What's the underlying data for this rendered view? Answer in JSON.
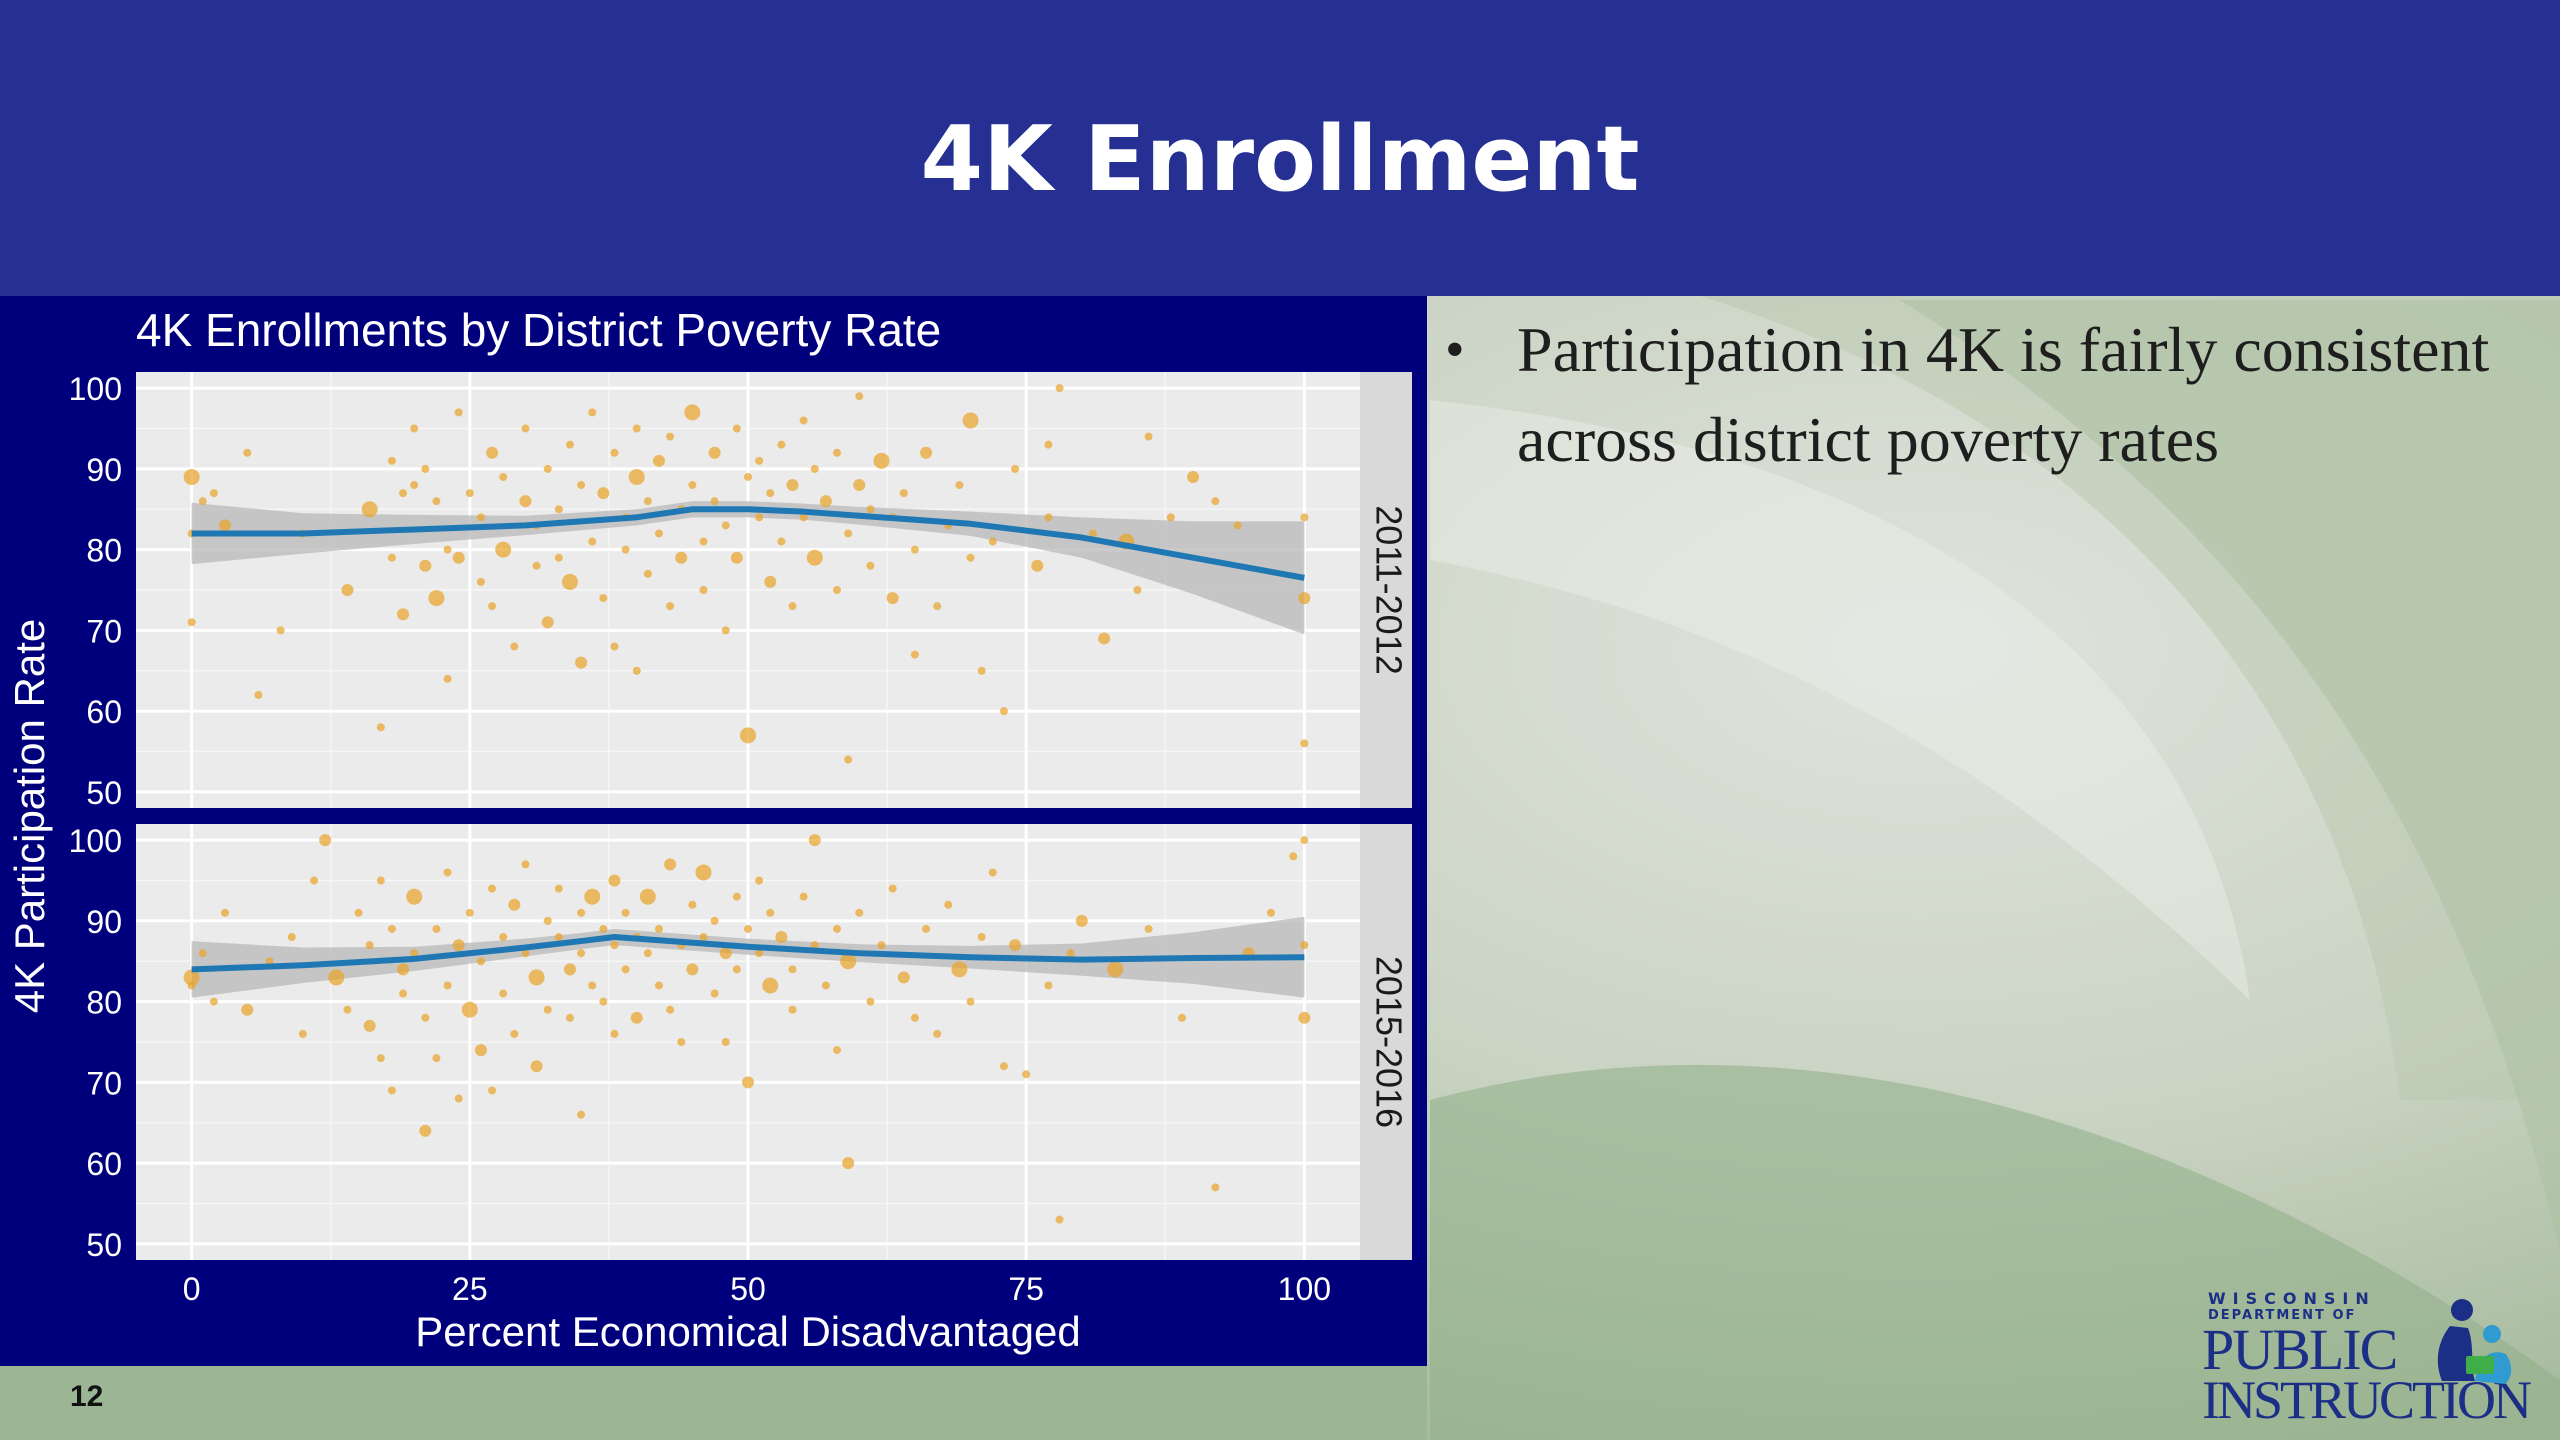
{
  "slide": {
    "title": "4K Enrollment",
    "page_number": "12",
    "bullets": [
      {
        "text": "Participation in 4K is fairly consistent across district poverty rates"
      }
    ]
  },
  "logo": {
    "line1": "WISCONSIN",
    "line2": "DEPARTMENT OF",
    "line3": "PUBLIC",
    "line4": "INSTRUCTION",
    "icon": "children-reading-icon"
  },
  "colors": {
    "header": "#253092",
    "chart_background": "#00007d",
    "panel": "#ebebeb",
    "points": "#e8a325",
    "smooth_line": "#1f78b4",
    "confidence_band": "#b8b8b8"
  },
  "chart_data": {
    "type": "scatter",
    "title": "4K Enrollments by District Poverty Rate",
    "xlabel": "Percent Economical Disadvantaged",
    "ylabel": "4K Participation Rate",
    "xlim": [
      -5,
      105
    ],
    "ylim": [
      48,
      102
    ],
    "x_ticks": [
      "0",
      "25",
      "50",
      "75",
      "100"
    ],
    "y_ticks": [
      "50",
      "60",
      "70",
      "80",
      "90",
      "100"
    ],
    "grid": true,
    "facets": [
      {
        "label": "2011-2012",
        "smooth": {
          "x": [
            0,
            10,
            20,
            30,
            40,
            45,
            50,
            55,
            60,
            70,
            80,
            90,
            100
          ],
          "y": [
            82,
            82,
            82.5,
            83,
            84,
            85,
            85,
            84.7,
            84.2,
            83.2,
            81.5,
            79,
            76.5
          ],
          "band": [
            3.8,
            2.5,
            1.8,
            1.2,
            1.0,
            1.0,
            1.0,
            1.0,
            1.1,
            1.5,
            2.5,
            4.5,
            7
          ]
        },
        "points": [
          [
            0,
            89
          ],
          [
            0,
            71
          ],
          [
            0,
            82
          ],
          [
            1,
            86
          ],
          [
            2,
            87
          ],
          [
            3,
            83
          ],
          [
            5,
            92
          ],
          [
            6,
            62
          ],
          [
            8,
            70
          ],
          [
            10,
            82
          ],
          [
            14,
            75
          ],
          [
            16,
            85
          ],
          [
            17,
            58
          ],
          [
            18,
            79
          ],
          [
            18,
            91
          ],
          [
            19,
            72
          ],
          [
            19,
            87
          ],
          [
            20,
            88
          ],
          [
            20,
            95
          ],
          [
            21,
            90
          ],
          [
            21,
            78
          ],
          [
            22,
            86
          ],
          [
            22,
            74
          ],
          [
            23,
            64
          ],
          [
            23,
            80
          ],
          [
            24,
            79
          ],
          [
            24,
            97
          ],
          [
            25,
            87
          ],
          [
            26,
            84
          ],
          [
            26,
            76
          ],
          [
            27,
            92
          ],
          [
            27,
            73
          ],
          [
            28,
            89
          ],
          [
            28,
            80
          ],
          [
            29,
            68
          ],
          [
            30,
            86
          ],
          [
            30,
            95
          ],
          [
            31,
            78
          ],
          [
            31,
            83
          ],
          [
            32,
            90
          ],
          [
            32,
            71
          ],
          [
            33,
            85
          ],
          [
            33,
            79
          ],
          [
            34,
            93
          ],
          [
            34,
            76
          ],
          [
            35,
            66
          ],
          [
            35,
            88
          ],
          [
            36,
            81
          ],
          [
            36,
            97
          ],
          [
            37,
            74
          ],
          [
            37,
            87
          ],
          [
            38,
            92
          ],
          [
            38,
            68
          ],
          [
            39,
            80
          ],
          [
            39,
            84
          ],
          [
            40,
            89
          ],
          [
            40,
            95
          ],
          [
            40,
            65
          ],
          [
            41,
            77
          ],
          [
            41,
            86
          ],
          [
            42,
            91
          ],
          [
            42,
            82
          ],
          [
            43,
            73
          ],
          [
            43,
            94
          ],
          [
            44,
            85
          ],
          [
            44,
            79
          ],
          [
            45,
            97
          ],
          [
            45,
            88
          ],
          [
            46,
            81
          ],
          [
            46,
            75
          ],
          [
            47,
            92
          ],
          [
            47,
            86
          ],
          [
            48,
            83
          ],
          [
            48,
            70
          ],
          [
            49,
            95
          ],
          [
            49,
            79
          ],
          [
            50,
            89
          ],
          [
            50,
            57
          ],
          [
            51,
            84
          ],
          [
            51,
            91
          ],
          [
            52,
            76
          ],
          [
            52,
            87
          ],
          [
            53,
            93
          ],
          [
            53,
            81
          ],
          [
            54,
            73
          ],
          [
            54,
            88
          ],
          [
            55,
            96
          ],
          [
            55,
            84
          ],
          [
            56,
            79
          ],
          [
            56,
            90
          ],
          [
            57,
            86
          ],
          [
            58,
            75
          ],
          [
            58,
            92
          ],
          [
            59,
            54
          ],
          [
            59,
            82
          ],
          [
            60,
            88
          ],
          [
            60,
            99
          ],
          [
            61,
            78
          ],
          [
            61,
            85
          ],
          [
            62,
            91
          ],
          [
            63,
            74
          ],
          [
            63,
            84
          ],
          [
            64,
            87
          ],
          [
            65,
            80
          ],
          [
            65,
            67
          ],
          [
            66,
            92
          ],
          [
            67,
            73
          ],
          [
            68,
            83
          ],
          [
            69,
            88
          ],
          [
            70,
            79
          ],
          [
            70,
            96
          ],
          [
            71,
            65
          ],
          [
            72,
            81
          ],
          [
            73,
            60
          ],
          [
            74,
            90
          ],
          [
            76,
            78
          ],
          [
            77,
            84
          ],
          [
            77,
            93
          ],
          [
            78,
            100
          ],
          [
            81,
            82
          ],
          [
            82,
            69
          ],
          [
            84,
            81
          ],
          [
            85,
            75
          ],
          [
            86,
            94
          ],
          [
            88,
            84
          ],
          [
            90,
            89
          ],
          [
            92,
            86
          ],
          [
            94,
            83
          ],
          [
            100,
            84
          ],
          [
            100,
            56
          ],
          [
            100,
            74
          ]
        ]
      },
      {
        "label": "2015-2016",
        "smooth": {
          "x": [
            0,
            10,
            20,
            30,
            35,
            38,
            40,
            50,
            60,
            70,
            80,
            90,
            100
          ],
          "y": [
            84,
            84.5,
            85.3,
            86.7,
            87.5,
            88,
            87.8,
            86.8,
            86,
            85.5,
            85.2,
            85.4,
            85.5
          ],
          "band": [
            3.5,
            2.2,
            1.5,
            1.1,
            1.0,
            1.0,
            1.0,
            1.0,
            1.1,
            1.4,
            2.0,
            3.2,
            5
          ]
        },
        "points": [
          [
            0,
            83
          ],
          [
            0,
            82
          ],
          [
            1,
            86
          ],
          [
            2,
            80
          ],
          [
            3,
            91
          ],
          [
            5,
            79
          ],
          [
            7,
            85
          ],
          [
            9,
            88
          ],
          [
            10,
            76
          ],
          [
            11,
            95
          ],
          [
            12,
            100
          ],
          [
            13,
            83
          ],
          [
            14,
            79
          ],
          [
            15,
            91
          ],
          [
            16,
            87
          ],
          [
            16,
            77
          ],
          [
            17,
            95
          ],
          [
            17,
            73
          ],
          [
            18,
            89
          ],
          [
            18,
            69
          ],
          [
            19,
            84
          ],
          [
            19,
            81
          ],
          [
            20,
            93
          ],
          [
            20,
            86
          ],
          [
            21,
            78
          ],
          [
            21,
            64
          ],
          [
            22,
            89
          ],
          [
            22,
            73
          ],
          [
            23,
            96
          ],
          [
            23,
            82
          ],
          [
            24,
            87
          ],
          [
            24,
            68
          ],
          [
            25,
            91
          ],
          [
            25,
            79
          ],
          [
            26,
            85
          ],
          [
            26,
            74
          ],
          [
            27,
            94
          ],
          [
            27,
            69
          ],
          [
            28,
            88
          ],
          [
            28,
            81
          ],
          [
            29,
            92
          ],
          [
            29,
            76
          ],
          [
            30,
            86
          ],
          [
            30,
            97
          ],
          [
            31,
            83
          ],
          [
            31,
            72
          ],
          [
            32,
            90
          ],
          [
            32,
            79
          ],
          [
            33,
            88
          ],
          [
            33,
            94
          ],
          [
            34,
            84
          ],
          [
            34,
            78
          ],
          [
            35,
            91
          ],
          [
            35,
            86
          ],
          [
            35,
            66
          ],
          [
            36,
            93
          ],
          [
            36,
            82
          ],
          [
            37,
            89
          ],
          [
            37,
            80
          ],
          [
            38,
            87
          ],
          [
            38,
            95
          ],
          [
            38,
            76
          ],
          [
            39,
            91
          ],
          [
            39,
            84
          ],
          [
            40,
            88
          ],
          [
            40,
            78
          ],
          [
            41,
            93
          ],
          [
            41,
            86
          ],
          [
            42,
            89
          ],
          [
            42,
            82
          ],
          [
            43,
            97
          ],
          [
            43,
            79
          ],
          [
            44,
            87
          ],
          [
            44,
            75
          ],
          [
            45,
            92
          ],
          [
            45,
            84
          ],
          [
            46,
            88
          ],
          [
            46,
            96
          ],
          [
            47,
            81
          ],
          [
            47,
            90
          ],
          [
            48,
            86
          ],
          [
            48,
            75
          ],
          [
            49,
            93
          ],
          [
            49,
            84
          ],
          [
            50,
            89
          ],
          [
            50,
            70
          ],
          [
            51,
            86
          ],
          [
            51,
            95
          ],
          [
            52,
            82
          ],
          [
            52,
            91
          ],
          [
            53,
            88
          ],
          [
            54,
            84
          ],
          [
            54,
            79
          ],
          [
            55,
            93
          ],
          [
            56,
            87
          ],
          [
            56,
            100
          ],
          [
            57,
            82
          ],
          [
            58,
            89
          ],
          [
            58,
            74
          ],
          [
            59,
            85
          ],
          [
            59,
            60
          ],
          [
            60,
            91
          ],
          [
            61,
            80
          ],
          [
            62,
            87
          ],
          [
            63,
            94
          ],
          [
            64,
            83
          ],
          [
            65,
            78
          ],
          [
            66,
            89
          ],
          [
            67,
            76
          ],
          [
            68,
            92
          ],
          [
            69,
            84
          ],
          [
            70,
            80
          ],
          [
            71,
            88
          ],
          [
            72,
            96
          ],
          [
            73,
            72
          ],
          [
            74,
            87
          ],
          [
            75,
            71
          ],
          [
            77,
            82
          ],
          [
            78,
            53
          ],
          [
            79,
            86
          ],
          [
            80,
            90
          ],
          [
            83,
            84
          ],
          [
            86,
            89
          ],
          [
            89,
            78
          ],
          [
            92,
            57
          ],
          [
            95,
            86
          ],
          [
            97,
            91
          ],
          [
            99,
            98
          ],
          [
            100,
            100
          ],
          [
            100,
            87
          ],
          [
            100,
            78
          ]
        ]
      }
    ]
  }
}
